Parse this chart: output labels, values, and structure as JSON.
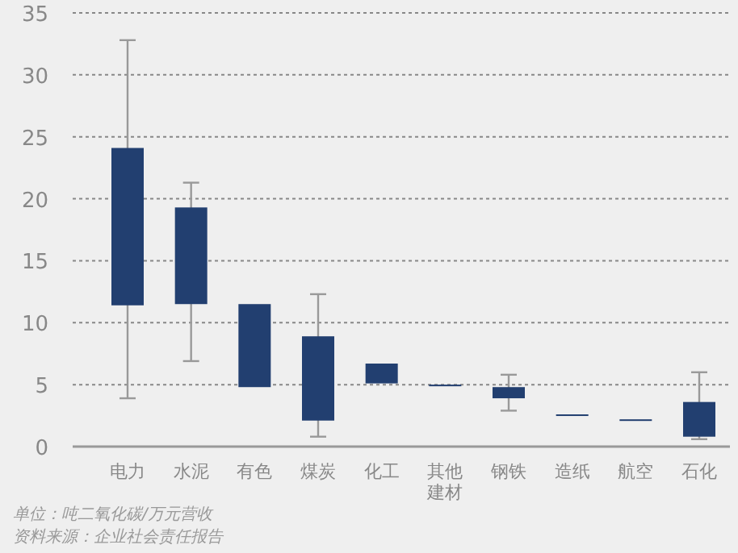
{
  "chart_data": {
    "type": "bar",
    "categories": [
      "电力",
      "水泥",
      "有色",
      "煤炭",
      "化工",
      "其他建材",
      "钢铁",
      "造纸",
      "航空",
      "石化"
    ],
    "base": [
      11.4,
      11.5,
      4.8,
      2.1,
      5.1,
      4.9,
      3.9,
      2.5,
      2.1,
      0.8
    ],
    "values": [
      12.7,
      7.8,
      6.7,
      6.8,
      1.6,
      0.1,
      0.9,
      0.1,
      0.1,
      2.8
    ],
    "errors": [
      [
        3.9,
        32.8
      ],
      [
        6.9,
        21.3
      ],
      null,
      [
        0.8,
        12.3
      ],
      null,
      null,
      [
        2.9,
        5.8
      ],
      null,
      null,
      [
        0.6,
        6.0
      ]
    ],
    "color": "#223f70",
    "ylim": [
      0,
      35
    ],
    "yticks": [
      0,
      5,
      10,
      15,
      20,
      25,
      30,
      35
    ],
    "grid": "y",
    "annotations": [
      "单位：吨二氧化碳/万元营收",
      "资料来源：企业社会责任报告"
    ]
  }
}
